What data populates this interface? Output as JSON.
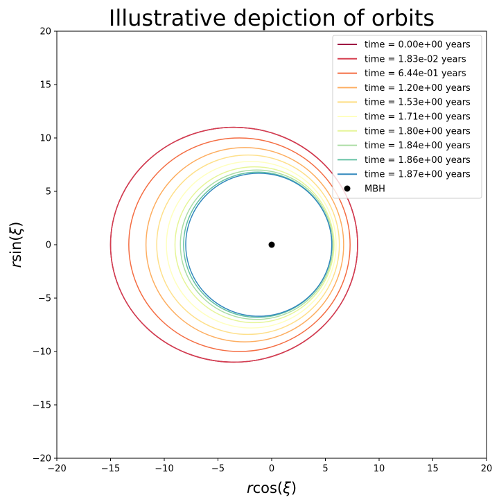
{
  "chart_data": {
    "type": "line",
    "title": "Illustrative depiction of orbits",
    "xlabel_parts": {
      "r": "r",
      "func": "cos(",
      "xi": "ξ",
      "close": ")"
    },
    "ylabel_parts": {
      "r": "r",
      "func": "sin(",
      "xi": "ξ",
      "close": ")"
    },
    "xlim": [
      -20,
      20
    ],
    "ylim": [
      -20,
      20
    ],
    "xticks": [
      -20,
      -15,
      -10,
      -5,
      0,
      5,
      10,
      15,
      20
    ],
    "yticks": [
      -20,
      -15,
      -10,
      -5,
      0,
      5,
      10,
      15,
      20
    ],
    "tick_labels": [
      "−20",
      "−15",
      "−10",
      "−5",
      "0",
      "5",
      "10",
      "15",
      "20"
    ],
    "grid": false,
    "legend_position": "top-right",
    "series": [
      {
        "name": "time = 0.00e+00 years",
        "color": "#9e0142",
        "a": 11.5,
        "b": 11.0,
        "cx": -3.5,
        "cy": 0
      },
      {
        "name": "time = 1.83e-02 years",
        "color": "#d53e4f",
        "a": 11.5,
        "b": 11.0,
        "cx": -3.5,
        "cy": 0
      },
      {
        "name": "time = 6.44e-01 years",
        "color": "#f46d43",
        "a": 10.3,
        "b": 10.0,
        "cx": -3.0,
        "cy": 0
      },
      {
        "name": "time = 1.20e+00 years",
        "color": "#fdae61",
        "a": 9.2,
        "b": 9.1,
        "cx": -2.5,
        "cy": 0
      },
      {
        "name": "time = 1.53e+00 years",
        "color": "#fee08b",
        "a": 8.5,
        "b": 8.4,
        "cx": -2.2,
        "cy": 0
      },
      {
        "name": "time = 1.71e+00 years",
        "color": "#ffffbf",
        "a": 7.9,
        "b": 7.8,
        "cx": -1.9,
        "cy": 0
      },
      {
        "name": "time = 1.80e+00 years",
        "color": "#e6f598",
        "a": 7.4,
        "b": 7.3,
        "cx": -1.6,
        "cy": 0
      },
      {
        "name": "time = 1.84e+00 years",
        "color": "#abdda4",
        "a": 7.1,
        "b": 7.0,
        "cx": -1.4,
        "cy": 0
      },
      {
        "name": "time = 1.86e+00 years",
        "color": "#66c2a5",
        "a": 6.9,
        "b": 6.8,
        "cx": -1.3,
        "cy": 0
      },
      {
        "name": "time = 1.87e+00 years",
        "color": "#3288bd",
        "a": 6.8,
        "b": 6.7,
        "cx": -1.2,
        "cy": 0
      }
    ],
    "points": [
      {
        "name": "MBH",
        "x": 0,
        "y": 0,
        "color": "#000000"
      }
    ]
  }
}
